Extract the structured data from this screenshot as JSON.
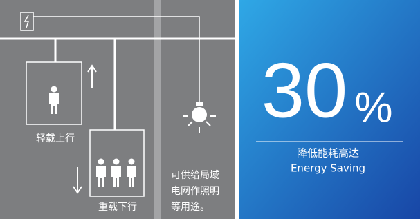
{
  "left_panel": {
    "up_label": "轻载上行",
    "down_label": "重载下行",
    "note_lines": [
      "可供给局域",
      "电网作照明",
      "等用途。"
    ]
  },
  "right_panel": {
    "headline": {
      "number": "30",
      "unit": "%"
    },
    "caption_cn": "降低能耗高达",
    "caption_en": "Energy Saving"
  }
}
